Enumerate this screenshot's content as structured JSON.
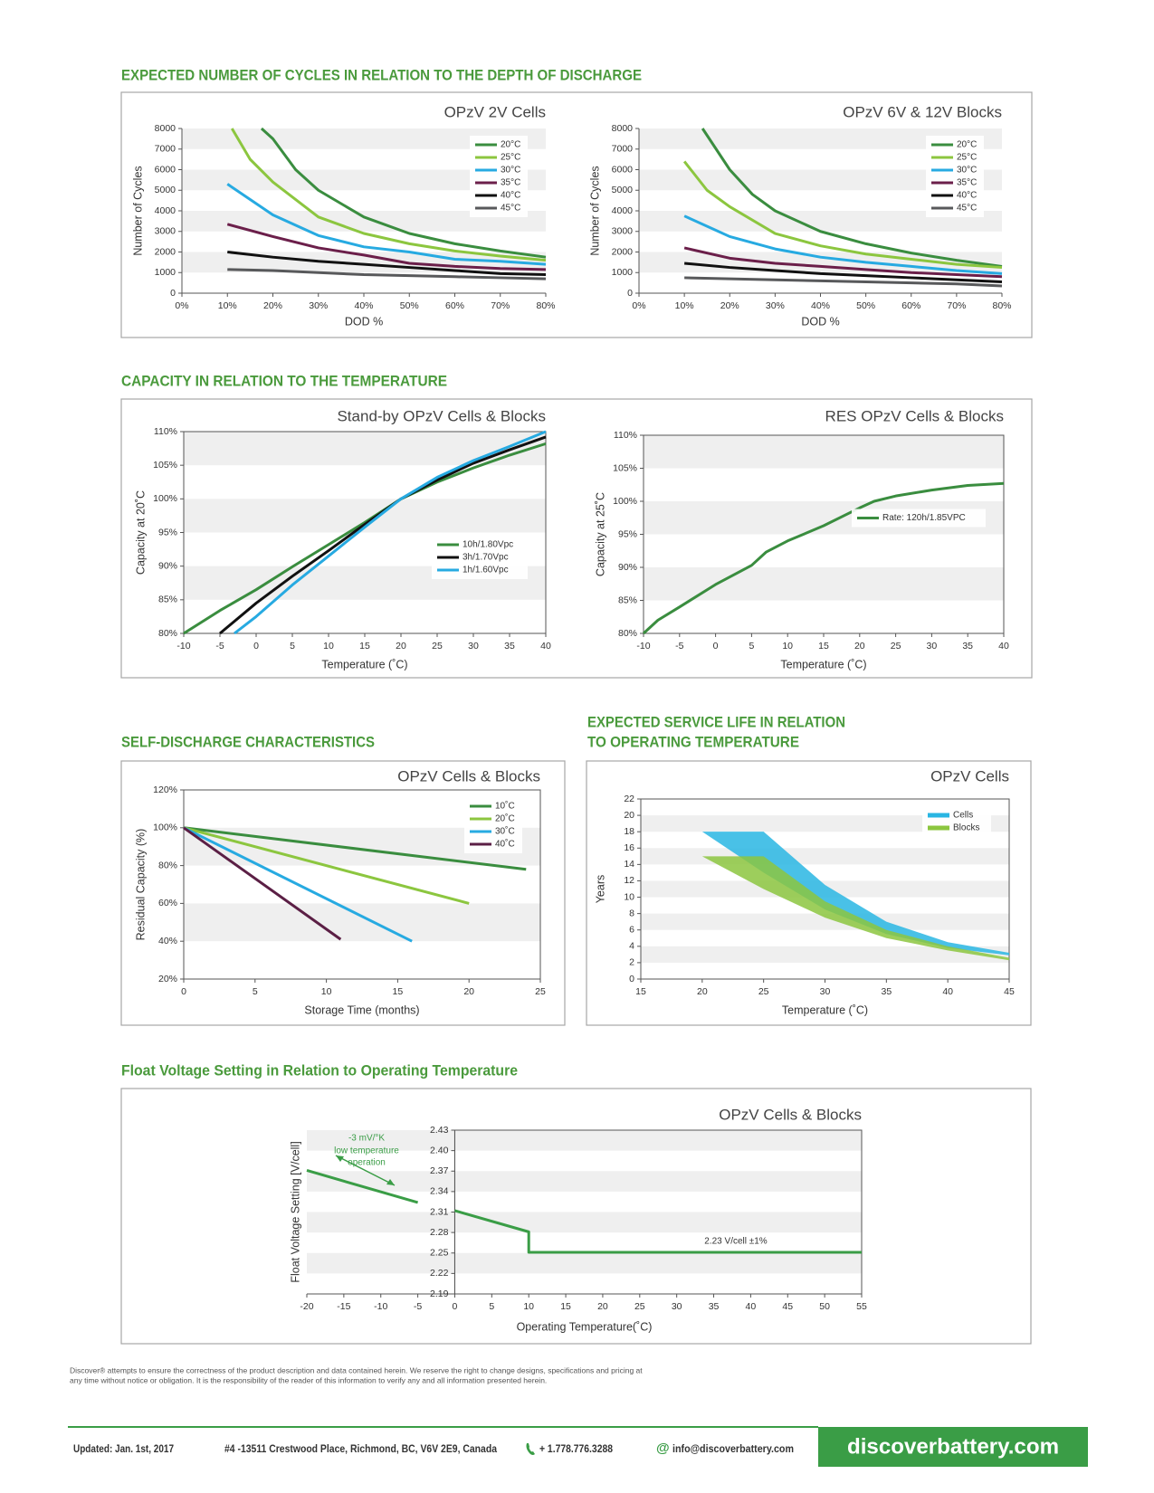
{
  "headings": [
    "EXPECTED NUMBER OF CYCLES IN RELATION TO THE DEPTH OF DISCHARGE",
    "CAPACITY IN RELATION TO THE TEMPERATURE",
    "SELF-DISCHARGE CHARACTERISTICS",
    "EXPECTED SERVICE LIFE IN RELATION",
    "TO OPERATING TEMPERATURE",
    "Float Voltage Setting in Relation to Operating Temperature"
  ],
  "chart_data": [
    {
      "type": "line",
      "title": "OPzV 2V Cells",
      "xlabel": "DOD %",
      "ylabel": "Number of Cycles",
      "xlim": [
        0,
        80
      ],
      "xticks": [
        {
          "value": 0,
          "label": "0%"
        },
        {
          "value": 10,
          "label": "10%"
        },
        {
          "value": 20,
          "label": "20%"
        },
        {
          "value": 30,
          "label": "30%"
        },
        {
          "value": 40,
          "label": "40%"
        },
        {
          "value": 50,
          "label": "50%"
        },
        {
          "value": 60,
          "label": "60%"
        },
        {
          "value": 70,
          "label": "70%"
        },
        {
          "value": 80,
          "label": "80%"
        }
      ],
      "ylim": [
        0,
        8000
      ],
      "yticks": [
        0,
        1000,
        2000,
        3000,
        4000,
        5000,
        6000,
        7000,
        8000
      ],
      "grid": true,
      "legend": "upper right",
      "series": [
        {
          "name": "20°C",
          "color": "#3a8d3f",
          "x": [
            17.5,
            20,
            25,
            30,
            40,
            50,
            60,
            70,
            80
          ],
          "values": [
            8000,
            7500,
            6000,
            5000,
            3700,
            2900,
            2400,
            2050,
            1750
          ]
        },
        {
          "name": "25°C",
          "color": "#8cc63f",
          "x": [
            11,
            15,
            20,
            30,
            40,
            50,
            60,
            70,
            80
          ],
          "values": [
            8000,
            6500,
            5400,
            3700,
            2900,
            2400,
            2050,
            1800,
            1600
          ]
        },
        {
          "name": "30°C",
          "color": "#27aae1",
          "x": [
            10,
            20,
            30,
            40,
            50,
            60,
            70,
            80
          ],
          "values": [
            5300,
            3800,
            2800,
            2250,
            2000,
            1650,
            1550,
            1400
          ]
        },
        {
          "name": "35°C",
          "color": "#6b1f4a",
          "x": [
            10,
            20,
            30,
            40,
            50,
            60,
            70,
            80
          ],
          "values": [
            3350,
            2750,
            2200,
            1850,
            1450,
            1300,
            1200,
            1150
          ]
        },
        {
          "name": "40°C",
          "color": "#111111",
          "x": [
            10,
            20,
            30,
            40,
            50,
            60,
            70,
            80
          ],
          "values": [
            2000,
            1750,
            1550,
            1400,
            1250,
            1100,
            950,
            900
          ]
        },
        {
          "name": "45°C",
          "color": "#58595b",
          "x": [
            10,
            20,
            30,
            40,
            50,
            60,
            70,
            80
          ],
          "values": [
            1150,
            1100,
            1000,
            900,
            850,
            800,
            750,
            700
          ]
        }
      ]
    },
    {
      "type": "line",
      "title": "OPzV 6V & 12V Blocks",
      "xlabel": "DOD %",
      "ylabel": "Number of Cycles",
      "xlim": [
        0,
        80
      ],
      "xticks": [
        {
          "value": 0,
          "label": "0%"
        },
        {
          "value": 10,
          "label": "10%"
        },
        {
          "value": 20,
          "label": "20%"
        },
        {
          "value": 30,
          "label": "30%"
        },
        {
          "value": 40,
          "label": "40%"
        },
        {
          "value": 50,
          "label": "50%"
        },
        {
          "value": 60,
          "label": "60%"
        },
        {
          "value": 70,
          "label": "70%"
        },
        {
          "value": 80,
          "label": "80%"
        }
      ],
      "ylim": [
        0,
        8000
      ],
      "yticks": [
        0,
        1000,
        2000,
        3000,
        4000,
        5000,
        6000,
        7000,
        8000
      ],
      "grid": true,
      "legend": "upper right",
      "series": [
        {
          "name": "20°C",
          "color": "#3a8d3f",
          "x": [
            14,
            20,
            25,
            30,
            40,
            50,
            60,
            70,
            80
          ],
          "values": [
            8000,
            6000,
            4800,
            4000,
            3000,
            2400,
            1950,
            1600,
            1300
          ]
        },
        {
          "name": "25°C",
          "color": "#8cc63f",
          "x": [
            10,
            15,
            20,
            30,
            40,
            50,
            60,
            70,
            80
          ],
          "values": [
            6400,
            5000,
            4200,
            2900,
            2300,
            1900,
            1650,
            1400,
            1250
          ]
        },
        {
          "name": "30°C",
          "color": "#27aae1",
          "x": [
            10,
            20,
            30,
            40,
            50,
            60,
            70,
            80
          ],
          "values": [
            3750,
            2750,
            2150,
            1750,
            1500,
            1300,
            1100,
            950
          ]
        },
        {
          "name": "35°C",
          "color": "#6b1f4a",
          "x": [
            10,
            20,
            30,
            40,
            50,
            60,
            70,
            80
          ],
          "values": [
            2200,
            1700,
            1450,
            1300,
            1150,
            1000,
            900,
            800
          ]
        },
        {
          "name": "40°C",
          "color": "#111111",
          "x": [
            10,
            20,
            30,
            40,
            50,
            60,
            70,
            80
          ],
          "values": [
            1450,
            1250,
            1100,
            950,
            850,
            750,
            650,
            550
          ]
        },
        {
          "name": "45°C",
          "color": "#58595b",
          "x": [
            10,
            20,
            30,
            40,
            50,
            60,
            70,
            80
          ],
          "values": [
            750,
            700,
            650,
            600,
            550,
            500,
            450,
            350
          ]
        }
      ]
    },
    {
      "type": "line",
      "title": "Stand-by OPzV Cells & Blocks",
      "xlabel": "Temperature (˚C)",
      "ylabel": "Capacity at 20˚C",
      "xlim": [
        -10,
        40
      ],
      "xticks": [
        -10,
        -5,
        0,
        5,
        10,
        15,
        20,
        25,
        30,
        35,
        40
      ],
      "ylim": [
        80,
        110
      ],
      "yticks": [
        {
          "value": 80,
          "label": "80%"
        },
        {
          "value": 85,
          "label": "85%"
        },
        {
          "value": 90,
          "label": "90%"
        },
        {
          "value": 95,
          "label": "95%"
        },
        {
          "value": 100,
          "label": "100%"
        },
        {
          "value": 105,
          "label": "105%"
        },
        {
          "value": 110,
          "label": "110%"
        }
      ],
      "grid": true,
      "legend": "lower right",
      "series": [
        {
          "name": "10h/1.80Vpc",
          "color": "#3a8d3f",
          "x": [
            -10,
            -5,
            0,
            5,
            10,
            15,
            20,
            25,
            30,
            35,
            40
          ],
          "values": [
            80,
            83.4,
            86.5,
            89.9,
            93.2,
            96.5,
            100,
            102.5,
            104.6,
            106.5,
            108.2
          ]
        },
        {
          "name": "3h/1.70Vpc",
          "color": "#111111",
          "x": [
            -5,
            0,
            5,
            10,
            15,
            20,
            25,
            30,
            35,
            40
          ],
          "values": [
            80,
            84.5,
            88.5,
            92.3,
            96.2,
            100,
            102.8,
            105.3,
            107.3,
            109.2
          ]
        },
        {
          "name": "1h/1.60Vpc",
          "color": "#27aae1",
          "x": [
            -3,
            0,
            5,
            10,
            15,
            20,
            25,
            30,
            35,
            40
          ],
          "values": [
            80,
            82.5,
            87.2,
            91.5,
            95.8,
            100,
            103.2,
            105.7,
            107.8,
            110
          ]
        }
      ]
    },
    {
      "type": "line",
      "title": "RES OPzV Cells & Blocks",
      "xlabel": "Temperature (˚C)",
      "ylabel": "Capacity at 25˚C",
      "xlim": [
        -10,
        40
      ],
      "xticks": [
        -10,
        -5,
        0,
        5,
        10,
        15,
        20,
        25,
        30,
        35,
        40
      ],
      "ylim": [
        80,
        110
      ],
      "yticks": [
        {
          "value": 80,
          "label": "80%"
        },
        {
          "value": 85,
          "label": "85%"
        },
        {
          "value": 90,
          "label": "90%"
        },
        {
          "value": 95,
          "label": "95%"
        },
        {
          "value": 100,
          "label": "100%"
        },
        {
          "value": 105,
          "label": "105%"
        },
        {
          "value": 110,
          "label": "110%"
        }
      ],
      "grid": true,
      "legend": "center right",
      "series": [
        {
          "name": "Rate: 120h/1.85VPC",
          "color": "#3a8d3f",
          "x": [
            -10,
            -8,
            -5,
            0,
            5,
            7,
            10,
            15,
            20,
            22,
            25,
            30,
            35,
            40
          ],
          "values": [
            80,
            82,
            84,
            87.4,
            90.3,
            92.3,
            94,
            96.3,
            99,
            100,
            100.8,
            101.7,
            102.4,
            102.7
          ]
        }
      ]
    },
    {
      "type": "line",
      "title": "OPzV Cells & Blocks",
      "xlabel": "Storage Time (months)",
      "ylabel": "Residual Capacity (%)",
      "xlim": [
        0,
        25
      ],
      "xticks": [
        0,
        5,
        10,
        15,
        20,
        25
      ],
      "ylim": [
        20,
        120
      ],
      "yticks": [
        {
          "value": 20,
          "label": "20%"
        },
        {
          "value": 40,
          "label": "40%"
        },
        {
          "value": 60,
          "label": "60%"
        },
        {
          "value": 80,
          "label": "80%"
        },
        {
          "value": 100,
          "label": "100%"
        },
        {
          "value": 120,
          "label": "120%"
        }
      ],
      "grid": true,
      "legend": "upper right",
      "series": [
        {
          "name": "10˚C",
          "color": "#3a8d3f",
          "x": [
            0,
            24
          ],
          "values": [
            100,
            78
          ]
        },
        {
          "name": "20˚C",
          "color": "#8cc63f",
          "x": [
            0,
            20
          ],
          "values": [
            100,
            60
          ]
        },
        {
          "name": "30˚C",
          "color": "#27aae1",
          "x": [
            0,
            16
          ],
          "values": [
            100,
            40
          ]
        },
        {
          "name": "40˚C",
          "color": "#5b1f45",
          "x": [
            0,
            11
          ],
          "values": [
            100,
            41
          ]
        }
      ]
    },
    {
      "type": "area",
      "title": "OPzV Cells",
      "xlabel": "Temperature (˚C)",
      "ylabel": "Years",
      "xlim": [
        15,
        45
      ],
      "xticks": [
        15,
        20,
        25,
        30,
        35,
        40,
        45
      ],
      "ylim": [
        0,
        22
      ],
      "yticks": [
        0,
        2,
        4,
        6,
        8,
        10,
        12,
        14,
        16,
        18,
        20,
        22
      ],
      "grid": true,
      "legend": "upper right",
      "series": [
        {
          "name": "Cells",
          "color": "#29b6e3",
          "x": [
            20,
            25,
            30,
            35,
            40,
            45
          ],
          "high": [
            18,
            18,
            11.5,
            7,
            4.5,
            3.2
          ],
          "low": [
            18,
            13,
            8.5,
            5.5,
            3.8,
            2.9
          ]
        },
        {
          "name": "Blocks",
          "color": "#8cc63f",
          "x": [
            20,
            25,
            30,
            35,
            40,
            45
          ],
          "high": [
            15,
            15,
            9.5,
            6,
            4,
            2.6
          ],
          "low": [
            15,
            11,
            7.5,
            5,
            3.5,
            2.3
          ]
        }
      ]
    },
    {
      "type": "line",
      "title": "OPzV Cells & Blocks",
      "xlabel": "Operating Temperature(˚C)",
      "ylabel": "Float Voltage Setting [V/cell]",
      "xlim": [
        -20,
        55
      ],
      "xticks": [
        -20,
        -15,
        -10,
        -5,
        0,
        5,
        10,
        15,
        20,
        25,
        30,
        35,
        40,
        45,
        50,
        55
      ],
      "ylim": [
        2.19,
        2.43
      ],
      "yticks": [
        2.19,
        2.22,
        2.25,
        2.28,
        2.31,
        2.34,
        2.37,
        {
          "value": 2.4,
          "label": "2.40"
        },
        2.43
      ],
      "grid": true,
      "series": [
        {
          "color": "#3a9d46",
          "x": [
            -20,
            -5,
            -2.5,
            0,
            10,
            10,
            55
          ],
          "values": [
            2.371,
            2.324,
            null,
            2.312,
            2.281,
            2.251,
            2.251
          ]
        }
      ],
      "annotations": [
        "-3 mV/°K",
        "low temperature",
        "operation",
        "2.23 V/cell ±1%"
      ]
    }
  ],
  "disclaimer": [
    "Discover® attempts to ensure the correctness of the product description and data contained herein. We reserve the right to change designs, specifications and pricing at",
    "any time without notice or obligation. It is the responsibility of the reader of this information to verify any and all information presented herein."
  ],
  "footer": {
    "updated": "Updated: Jan. 1st, 2017",
    "address": "#4 -13511 Crestwood Place, Richmond, BC, V6V 2E9, Canada",
    "phone": "+ 1.778.776.3288",
    "email_icon": "@",
    "email": "info@discoverbattery.com",
    "website": "discoverbattery.com"
  }
}
